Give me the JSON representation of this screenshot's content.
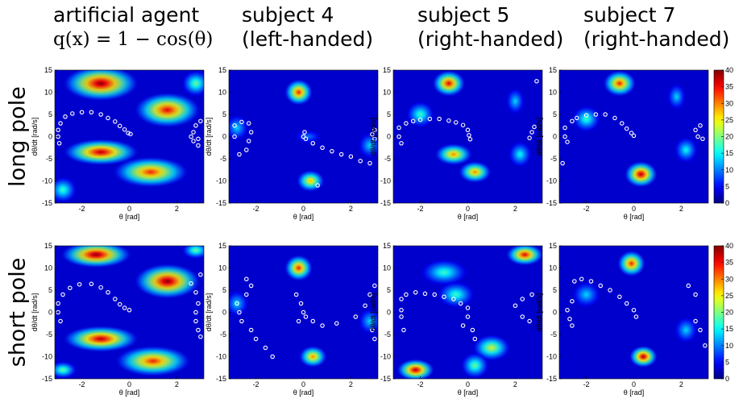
{
  "column_titles": [
    {
      "line1": "artificial agent",
      "line2": "q(x) = 1 − cos(θ)"
    },
    {
      "line1": "subject 4",
      "line2": "(left-handed)"
    },
    {
      "line1": "subject 5",
      "line2": "(right-handed)"
    },
    {
      "line1": "subject 7",
      "line2": "(right-handed)"
    }
  ],
  "row_labels": [
    "long pole",
    "short pole"
  ],
  "chart_data": {
    "type": "heatmap",
    "grid": {
      "rows": 2,
      "cols": 4
    },
    "xlabel": "θ [rad]",
    "ylabel": "dθ/dt  [rad/s]",
    "xlim": [
      -3.14,
      3.14
    ],
    "ylim": [
      -15,
      15
    ],
    "x_ticks": [
      -2,
      0,
      2
    ],
    "y_ticks": [
      15,
      10,
      5,
      0,
      -5,
      -10,
      -15
    ],
    "colorbar": {
      "min": 0,
      "max": 40,
      "ticks": [
        40,
        35,
        30,
        25,
        20,
        15,
        10,
        5,
        0
      ],
      "colormap": "jet"
    },
    "panels": [
      {
        "row": "long pole",
        "col": "artificial agent",
        "blobs": [
          [
            -1.2,
            12,
            1.6,
            4.0,
            40
          ],
          [
            1.6,
            6,
            1.4,
            4,
            36
          ],
          [
            -1.2,
            -3.5,
            1.6,
            3,
            38
          ],
          [
            0.9,
            -8,
            1.6,
            3.5,
            34
          ],
          [
            2.8,
            12,
            0.6,
            3,
            20
          ],
          [
            -2.8,
            -12,
            0.6,
            3,
            18
          ]
        ],
        "points": [
          [
            -3.0,
            0
          ],
          [
            -3.0,
            1.5
          ],
          [
            -2.9,
            3
          ],
          [
            -2.95,
            -1.5
          ],
          [
            -2.7,
            4.5
          ],
          [
            -2.4,
            5.2
          ],
          [
            -2.0,
            5.5
          ],
          [
            -1.6,
            5.5
          ],
          [
            -1.2,
            5.0
          ],
          [
            -0.9,
            4.2
          ],
          [
            -0.6,
            3.4
          ],
          [
            -0.4,
            2.4
          ],
          [
            -0.2,
            1.6
          ],
          [
            -0.05,
            0.8
          ],
          [
            0.05,
            0.6
          ],
          [
            2.7,
            1.0
          ],
          [
            2.6,
            0
          ],
          [
            2.7,
            -1.0
          ],
          [
            2.8,
            2.5
          ],
          [
            2.9,
            -2.0
          ],
          [
            3.0,
            3.5
          ],
          [
            2.9,
            -0.5
          ]
        ]
      },
      {
        "row": "long pole",
        "col": "subject 4",
        "blobs": [
          [
            -0.2,
            10,
            0.6,
            3.0,
            34
          ],
          [
            0.3,
            -10,
            0.6,
            2.5,
            28
          ],
          [
            -2.8,
            2,
            0.5,
            3,
            14
          ],
          [
            2.8,
            -2,
            0.5,
            3,
            14
          ],
          [
            0.2,
            0,
            0.6,
            1.5,
            10
          ]
        ],
        "points": [
          [
            -2.9,
            0
          ],
          [
            -2.9,
            2.5
          ],
          [
            -2.6,
            3.3
          ],
          [
            -2.3,
            3.0
          ],
          [
            -2.2,
            1.0
          ],
          [
            -2.3,
            -1.0
          ],
          [
            -2.4,
            -3.0
          ],
          [
            -2.7,
            -4.0
          ],
          [
            0.0,
            0
          ],
          [
            0.05,
            1.0
          ],
          [
            0.1,
            -0.5
          ],
          [
            0.4,
            -1.5
          ],
          [
            0.8,
            -2.5
          ],
          [
            1.2,
            -3.3
          ],
          [
            1.6,
            -4.0
          ],
          [
            2.0,
            -4.5
          ],
          [
            2.4,
            -5.5
          ],
          [
            2.8,
            -6.0
          ],
          [
            2.9,
            0.5
          ],
          [
            3.0,
            1.5
          ],
          [
            3.0,
            -0.5
          ],
          [
            0.6,
            -11
          ]
        ]
      },
      {
        "row": "long pole",
        "col": "subject 5",
        "blobs": [
          [
            -0.8,
            12,
            0.7,
            3.0,
            36
          ],
          [
            -0.6,
            -4,
            0.8,
            2.5,
            30
          ],
          [
            0.3,
            -8,
            0.7,
            2.5,
            30
          ],
          [
            -2.0,
            5,
            0.6,
            3,
            18
          ],
          [
            2.2,
            -4,
            0.5,
            3,
            16
          ],
          [
            2.0,
            8,
            0.4,
            3,
            14
          ]
        ],
        "points": [
          [
            -2.9,
            0
          ],
          [
            -2.9,
            2
          ],
          [
            -2.8,
            -1.5
          ],
          [
            -2.6,
            3.0
          ],
          [
            -2.3,
            3.5
          ],
          [
            -2.0,
            3.8
          ],
          [
            -1.6,
            4.0
          ],
          [
            -1.2,
            4.0
          ],
          [
            -0.8,
            3.6
          ],
          [
            -0.5,
            3.2
          ],
          [
            -0.2,
            2.6
          ],
          [
            0.0,
            1.5
          ],
          [
            0.05,
            0.3
          ],
          [
            0.1,
            -0.6
          ],
          [
            2.7,
            1.0
          ],
          [
            2.6,
            -0.3
          ],
          [
            2.8,
            2.2
          ],
          [
            2.9,
            12.5
          ]
        ]
      },
      {
        "row": "long pole",
        "col": "subject 7",
        "blobs": [
          [
            -0.6,
            12,
            0.7,
            3.0,
            34
          ],
          [
            0.3,
            -8.5,
            0.7,
            3.0,
            38
          ],
          [
            -2.0,
            4,
            0.6,
            3,
            18
          ],
          [
            2.2,
            -3,
            0.5,
            3,
            16
          ],
          [
            1.8,
            9,
            0.4,
            3,
            14
          ]
        ],
        "points": [
          [
            -2.9,
            0
          ],
          [
            -2.9,
            2.0
          ],
          [
            -2.8,
            -1.2
          ],
          [
            -2.6,
            3.5
          ],
          [
            -2.4,
            4.2
          ],
          [
            -2.0,
            4.8
          ],
          [
            -1.6,
            5.0
          ],
          [
            -1.2,
            5.0
          ],
          [
            -0.8,
            4.2
          ],
          [
            -0.5,
            3.0
          ],
          [
            -0.3,
            1.8
          ],
          [
            -0.1,
            0.8
          ],
          [
            0.0,
            0.2
          ],
          [
            2.6,
            1.5
          ],
          [
            2.7,
            0
          ],
          [
            2.8,
            2.5
          ],
          [
            2.9,
            -0.5
          ],
          [
            -3.0,
            -6
          ]
        ]
      },
      {
        "row": "short pole",
        "col": "artificial agent",
        "blobs": [
          [
            -1.4,
            13,
            1.5,
            3.0,
            40
          ],
          [
            1.6,
            7,
            1.4,
            4,
            40
          ],
          [
            -1.2,
            -6,
            1.6,
            3,
            38
          ],
          [
            1.0,
            -11,
            1.6,
            3.5,
            34
          ],
          [
            2.8,
            14,
            0.6,
            2,
            20
          ],
          [
            -2.8,
            -13,
            0.6,
            2,
            20
          ]
        ],
        "points": [
          [
            -3.0,
            0
          ],
          [
            -3.0,
            2
          ],
          [
            -2.9,
            -2
          ],
          [
            -2.8,
            4
          ],
          [
            -2.5,
            5.5
          ],
          [
            -2.1,
            6.3
          ],
          [
            -1.6,
            6.4
          ],
          [
            -1.2,
            5.6
          ],
          [
            -0.9,
            4.5
          ],
          [
            -0.6,
            3.0
          ],
          [
            -0.4,
            1.8
          ],
          [
            -0.2,
            1.0
          ],
          [
            0.0,
            0.5
          ],
          [
            2.6,
            6.5
          ],
          [
            2.8,
            4.5
          ],
          [
            2.9,
            2.0
          ],
          [
            2.8,
            0
          ],
          [
            2.8,
            -2.0
          ],
          [
            2.9,
            -4.0
          ],
          [
            3.0,
            -5.5
          ],
          [
            3.0,
            8.5
          ]
        ]
      },
      {
        "row": "short pole",
        "col": "subject 4",
        "blobs": [
          [
            -0.2,
            10,
            0.6,
            3.0,
            34
          ],
          [
            0.4,
            -10,
            0.6,
            2.5,
            30
          ],
          [
            -2.8,
            2,
            0.5,
            3,
            14
          ],
          [
            2.8,
            -2,
            0.5,
            3,
            14
          ]
        ],
        "points": [
          [
            -2.7,
            0
          ],
          [
            -2.8,
            2
          ],
          [
            -2.6,
            -2
          ],
          [
            -2.4,
            4
          ],
          [
            -2.2,
            6
          ],
          [
            -2.2,
            -4
          ],
          [
            -2.0,
            -6
          ],
          [
            -1.6,
            -8
          ],
          [
            -1.3,
            -10
          ],
          [
            -2.4,
            7.5
          ],
          [
            -0.3,
            4
          ],
          [
            -0.1,
            2
          ],
          [
            0.0,
            0
          ],
          [
            0.1,
            -1
          ],
          [
            0.4,
            -2
          ],
          [
            0.8,
            -3
          ],
          [
            1.4,
            -2.5
          ],
          [
            2.2,
            -1
          ],
          [
            2.6,
            1.5
          ],
          [
            2.8,
            4
          ],
          [
            3.0,
            6
          ],
          [
            2.9,
            -4
          ],
          [
            3.0,
            -6
          ],
          [
            -0.2,
            -2
          ]
        ]
      },
      {
        "row": "short pole",
        "col": "subject 5",
        "blobs": [
          [
            -2.2,
            -13,
            0.8,
            2.5,
            38
          ],
          [
            2.4,
            13,
            0.8,
            2.5,
            36
          ],
          [
            -1.0,
            9,
            1.0,
            3,
            18
          ],
          [
            1.0,
            -8,
            0.8,
            3,
            24
          ],
          [
            0.3,
            -12,
            0.6,
            3,
            20
          ],
          [
            -0.5,
            4,
            0.8,
            3,
            18
          ]
        ],
        "points": [
          [
            -2.8,
            3
          ],
          [
            -2.6,
            4
          ],
          [
            -2.2,
            4.5
          ],
          [
            -1.8,
            4.2
          ],
          [
            -1.4,
            4
          ],
          [
            -1.0,
            3.5
          ],
          [
            -0.6,
            3
          ],
          [
            -0.3,
            2
          ],
          [
            0.0,
            1
          ],
          [
            0.0,
            -1
          ],
          [
            -0.2,
            -3
          ],
          [
            0.2,
            -4
          ],
          [
            0.3,
            -6
          ],
          [
            2.0,
            1.5
          ],
          [
            2.3,
            3
          ],
          [
            2.7,
            4
          ],
          [
            2.6,
            -2
          ],
          [
            2.3,
            -1
          ],
          [
            -2.8,
            -1
          ],
          [
            -2.7,
            -4
          ],
          [
            -2.8,
            0.5
          ]
        ]
      },
      {
        "row": "short pole",
        "col": "subject 7",
        "blobs": [
          [
            -0.1,
            11,
            0.6,
            3.0,
            34
          ],
          [
            0.4,
            -10,
            0.6,
            2.5,
            38
          ],
          [
            -2.0,
            4,
            0.6,
            3,
            14
          ],
          [
            2.2,
            -4,
            0.5,
            3,
            14
          ]
        ],
        "points": [
          [
            -2.5,
            7
          ],
          [
            -2.2,
            7.5
          ],
          [
            -1.8,
            7
          ],
          [
            -1.4,
            6
          ],
          [
            -1.0,
            5
          ],
          [
            -0.6,
            3.5
          ],
          [
            -0.3,
            2
          ],
          [
            0.0,
            0.5
          ],
          [
            0.1,
            -1
          ],
          [
            -2.8,
            0.5
          ],
          [
            -2.6,
            2.5
          ],
          [
            -2.7,
            -1.5
          ],
          [
            -2.6,
            -3
          ],
          [
            2.3,
            6
          ],
          [
            2.6,
            4
          ],
          [
            2.6,
            -2
          ],
          [
            2.8,
            -4
          ],
          [
            3.0,
            -7.5
          ]
        ]
      }
    ]
  }
}
